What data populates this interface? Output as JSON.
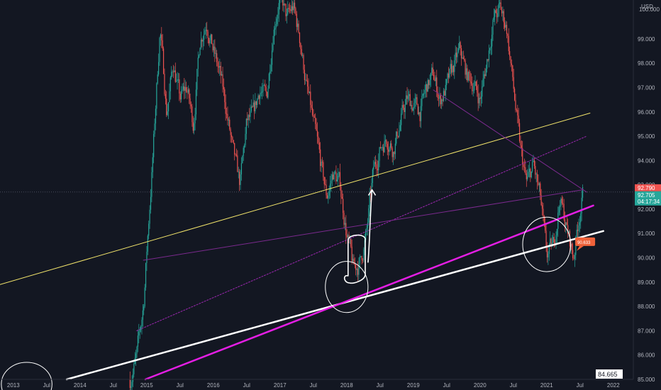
{
  "chart_data": {
    "type": "candlestick",
    "currency": "USD",
    "ylim": [
      85,
      100.6
    ],
    "xlim": [
      2012.8,
      2022.3
    ],
    "y_ticks": [
      "99.000",
      "98.000",
      "97.000",
      "96.000",
      "95.000",
      "94.000",
      "93.000",
      "92.000",
      "91.000",
      "90.000",
      "89.000",
      "88.000",
      "87.000",
      "86.000",
      "85.000"
    ],
    "y_tick_top_partial": "100.000",
    "x_ticks": [
      {
        "label": "2013",
        "t": 2013.0
      },
      {
        "label": "Jul",
        "t": 2013.5
      },
      {
        "label": "2014",
        "t": 2014.0
      },
      {
        "label": "Jul",
        "t": 2014.5
      },
      {
        "label": "2015",
        "t": 2015.0
      },
      {
        "label": "Jul",
        "t": 2015.5
      },
      {
        "label": "2016",
        "t": 2016.0
      },
      {
        "label": "Jul",
        "t": 2016.5
      },
      {
        "label": "2017",
        "t": 2017.0
      },
      {
        "label": "Jul",
        "t": 2017.5
      },
      {
        "label": "2018",
        "t": 2018.0
      },
      {
        "label": "Jul",
        "t": 2018.5
      },
      {
        "label": "2019",
        "t": 2019.0
      },
      {
        "label": "Jul",
        "t": 2019.5
      },
      {
        "label": "2020",
        "t": 2020.0
      },
      {
        "label": "Jul",
        "t": 2020.5
      },
      {
        "label": "2021",
        "t": 2021.0
      },
      {
        "label": "Jul",
        "t": 2021.5
      },
      {
        "label": "2022",
        "t": 2022.0
      }
    ],
    "price_path": [
      [
        2014.75,
        85.0
      ],
      [
        2014.85,
        85.9
      ],
      [
        2014.95,
        88.0
      ],
      [
        2015.03,
        91.5
      ],
      [
        2015.1,
        94.5
      ],
      [
        2015.2,
        99.5
      ],
      [
        2015.3,
        96.0
      ],
      [
        2015.4,
        98.0
      ],
      [
        2015.5,
        96.5
      ],
      [
        2015.6,
        97.0
      ],
      [
        2015.7,
        95.5
      ],
      [
        2015.8,
        99.0
      ],
      [
        2015.9,
        99.8
      ],
      [
        2016.0,
        98.5
      ],
      [
        2016.1,
        97.5
      ],
      [
        2016.2,
        96.0
      ],
      [
        2016.3,
        94.2
      ],
      [
        2016.4,
        93.0
      ],
      [
        2016.5,
        95.5
      ],
      [
        2016.6,
        95.8
      ],
      [
        2016.7,
        97.0
      ],
      [
        2016.8,
        96.5
      ],
      [
        2016.9,
        99.5
      ],
      [
        2017.0,
        100.8
      ],
      [
        2017.1,
        99.8
      ],
      [
        2017.2,
        100.3
      ],
      [
        2017.3,
        99.0
      ],
      [
        2017.4,
        97.0
      ],
      [
        2017.5,
        95.5
      ],
      [
        2017.6,
        94.0
      ],
      [
        2017.7,
        92.5
      ],
      [
        2017.8,
        93.5
      ],
      [
        2017.9,
        93.0
      ],
      [
        2018.0,
        91.0
      ],
      [
        2018.1,
        89.5
      ],
      [
        2018.2,
        89.8
      ],
      [
        2018.3,
        91.0
      ],
      [
        2018.4,
        93.5
      ],
      [
        2018.5,
        94.5
      ],
      [
        2018.6,
        95.0
      ],
      [
        2018.7,
        94.5
      ],
      [
        2018.8,
        95.5
      ],
      [
        2018.9,
        96.5
      ],
      [
        2019.0,
        96.3
      ],
      [
        2019.1,
        96.0
      ],
      [
        2019.2,
        97.0
      ],
      [
        2019.3,
        97.5
      ],
      [
        2019.4,
        96.5
      ],
      [
        2019.5,
        97.0
      ],
      [
        2019.6,
        97.8
      ],
      [
        2019.7,
        98.5
      ],
      [
        2019.8,
        97.5
      ],
      [
        2019.9,
        97.2
      ],
      [
        2020.0,
        96.5
      ],
      [
        2020.1,
        98.0
      ],
      [
        2020.2,
        99.8
      ],
      [
        2020.3,
        100.2
      ],
      [
        2020.4,
        99.5
      ],
      [
        2020.5,
        97.0
      ],
      [
        2020.6,
        94.5
      ],
      [
        2020.7,
        93.0
      ],
      [
        2020.8,
        93.8
      ],
      [
        2020.9,
        92.5
      ],
      [
        2021.0,
        90.0
      ],
      [
        2021.1,
        90.5
      ],
      [
        2021.2,
        92.5
      ],
      [
        2021.3,
        91.2
      ],
      [
        2021.4,
        90.0
      ],
      [
        2021.5,
        92.0
      ],
      [
        2021.55,
        92.7
      ]
    ],
    "price_labels": [
      {
        "text": "92.790",
        "value": 92.79,
        "color": "#ef5350"
      },
      {
        "text": "92.705",
        "value": 92.705,
        "color": "#26a69a"
      },
      {
        "text": "04:17:34",
        "value": 92.705,
        "color": "#26a69a"
      }
    ],
    "callout": {
      "text": "90.633",
      "t": 2021.45,
      "value": 90.633,
      "color": "#f0623a"
    },
    "bottom_label": {
      "text": "84.665"
    },
    "lines": [
      {
        "name": "yellow-trendline",
        "color": "#f2e46b",
        "width": 1,
        "dash": "",
        "p1": [
          2012.8,
          88.9
        ],
        "p2": [
          2021.65,
          95.95
        ]
      },
      {
        "name": "white-support-line",
        "color": "#ffffff",
        "width": 2.5,
        "dash": "",
        "p1": [
          2013.8,
          85.0
        ],
        "p2": [
          2021.85,
          91.1
        ]
      },
      {
        "name": "magenta-support-line",
        "color": "#e41ee4",
        "width": 2.5,
        "dash": "",
        "p1": [
          2014.98,
          85.0
        ],
        "p2": [
          2021.7,
          92.15
        ]
      },
      {
        "name": "purple-dotted-line",
        "color": "#9c27b0",
        "width": 1,
        "dash": "2,2",
        "p1": [
          2014.85,
          87.0
        ],
        "p2": [
          2021.6,
          95.0
        ]
      },
      {
        "name": "purple-thin-line-1",
        "color": "#7b2a8e",
        "width": 1,
        "dash": "",
        "p1": [
          2014.95,
          89.9
        ],
        "p2": [
          2021.55,
          92.8
        ]
      },
      {
        "name": "purple-thin-line-2",
        "color": "#7b2a8e",
        "width": 1,
        "dash": "",
        "p1": [
          2019.3,
          96.9
        ],
        "p2": [
          2021.6,
          92.7
        ]
      }
    ],
    "hline": {
      "value": 92.705,
      "color": "#4b4f5c"
    },
    "circles": [
      {
        "name": "circle-2018",
        "center": [
          2018.0,
          88.8
        ],
        "r": 0.32,
        "ry": 1.05
      },
      {
        "name": "circle-2021",
        "center": [
          2021.0,
          90.55
        ],
        "r": 0.36,
        "ry": 1.12
      },
      {
        "name": "circle-2013",
        "center": [
          2013.2,
          84.8
        ],
        "r": 0.38,
        "ry": 0.9
      }
    ],
    "bracket": {
      "name": "rebound-bracket",
      "t0": 2018.0,
      "t1": 2018.3,
      "v0": 89.2,
      "v1": 90.9
    },
    "arrow": {
      "name": "breakout-arrow",
      "from": [
        2018.32,
        89.8
      ],
      "to": [
        2018.38,
        92.8
      ]
    },
    "colors": {
      "up": "#26a69a",
      "down": "#ef5350",
      "background": "#131722",
      "axis_text": "#b2b5be"
    }
  }
}
